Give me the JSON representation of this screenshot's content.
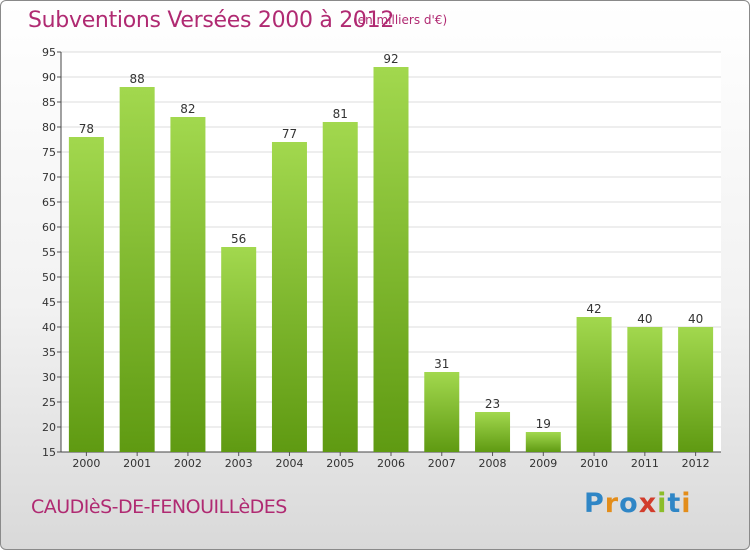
{
  "chart_data": {
    "type": "bar",
    "title": "Subventions Versées 2000 à 2012",
    "subtitle": "(en milliers d'€)",
    "categories": [
      "2000",
      "2001",
      "2002",
      "2003",
      "2004",
      "2005",
      "2006",
      "2007",
      "2008",
      "2009",
      "2010",
      "2011",
      "2012"
    ],
    "values": [
      78,
      88,
      82,
      56,
      77,
      81,
      92,
      31,
      23,
      19,
      42,
      40,
      40
    ],
    "data_labels": [
      "78",
      "88",
      "82",
      "56",
      "77",
      "81",
      "92",
      "31",
      "23",
      "19",
      "42",
      "40",
      "40"
    ],
    "ylim": [
      15,
      95
    ],
    "yticks": [
      "15",
      "20",
      "25",
      "30",
      "35",
      "40",
      "45",
      "50",
      "55",
      "60",
      "65",
      "70",
      "75",
      "80",
      "85",
      "90",
      "95"
    ],
    "grid": true,
    "colors": {
      "bar_light": "#a2d84e",
      "bar_dark": "#5f9a12",
      "text": "#b02a72"
    }
  },
  "commune": "CAUDIèS-DE-FENOUILLèDES",
  "logo": {
    "letters": [
      "P",
      "r",
      "o",
      "x",
      "i",
      "t",
      "i"
    ],
    "colors": [
      "#2f86c6",
      "#e38d1a",
      "#2f86c6",
      "#d23c2b",
      "#8cbd2a",
      "#2f86c6",
      "#e38d1a"
    ]
  }
}
